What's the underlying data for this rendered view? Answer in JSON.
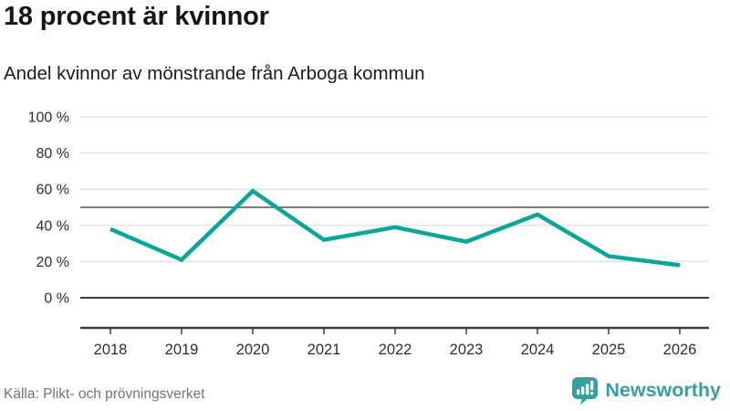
{
  "chart_data": {
    "type": "line",
    "title": "18 procent är kvinnor",
    "subtitle": "Andel kvinnor av mönstrande från Arboga kommun",
    "categories": [
      "2018",
      "2019",
      "2020",
      "2021",
      "2022",
      "2023",
      "2024",
      "2025",
      "2026"
    ],
    "series": [
      {
        "name": "Andel kvinnor av mönstrande",
        "values": [
          38,
          21,
          59,
          32,
          39,
          31,
          46,
          23,
          18
        ]
      }
    ],
    "ylim": [
      0,
      100
    ],
    "yticks": [
      0,
      20,
      40,
      60,
      80,
      100
    ],
    "ytick_labels": [
      "0 %",
      "20 %",
      "40 %",
      "60 %",
      "80 %",
      "100 %"
    ],
    "reference_line": 50,
    "grid": true,
    "legend": "none",
    "colors": {
      "line": "#0aa69b",
      "grid": "#e3e3e3",
      "reference": "#7d7d7d",
      "axis": "#3d3d3d",
      "tick_label": "#2e2e2e"
    }
  },
  "footer": {
    "source": "Källa: Plikt- och prövningsverket",
    "brand": "Newsworthy",
    "brand_color": "#35a09e"
  }
}
